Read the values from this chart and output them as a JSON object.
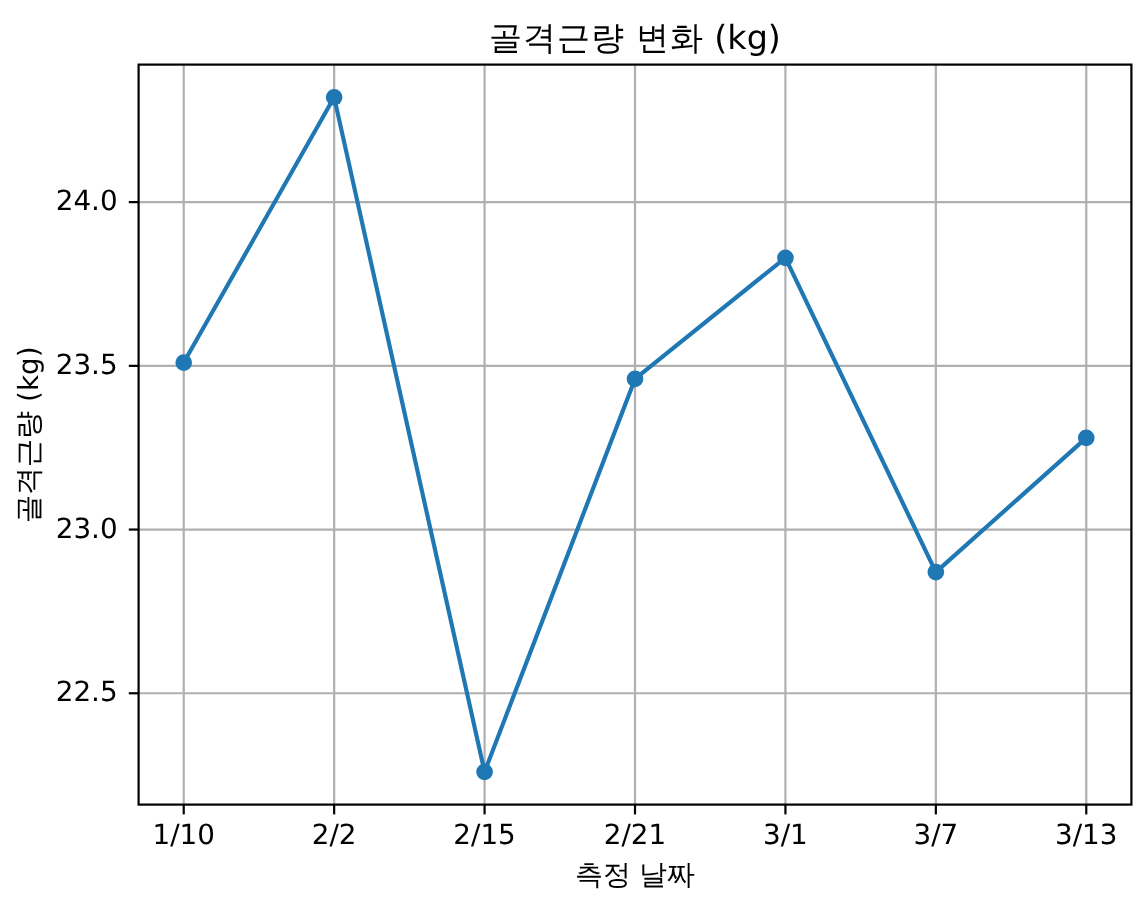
{
  "chart_data": {
    "type": "line",
    "title": "골격근량 변화 (kg)",
    "xlabel": "측정 날짜",
    "ylabel": "골격근량 (kg)",
    "categories": [
      "1/10",
      "2/2",
      "2/15",
      "2/21",
      "3/1",
      "3/7",
      "3/13"
    ],
    "series": [
      {
        "color": "#1f77b4",
        "values": [
          23.51,
          24.32,
          22.26,
          23.46,
          23.83,
          22.87,
          23.28
        ]
      }
    ],
    "ylim": [
      22.16,
      24.42
    ],
    "yticks": [
      22.5,
      {
        "value": 23,
        "label": "23.0"
      },
      23.5,
      {
        "value": 24,
        "label": "24.0"
      }
    ],
    "grid": true,
    "marker": "circle",
    "line_style": "solid"
  }
}
